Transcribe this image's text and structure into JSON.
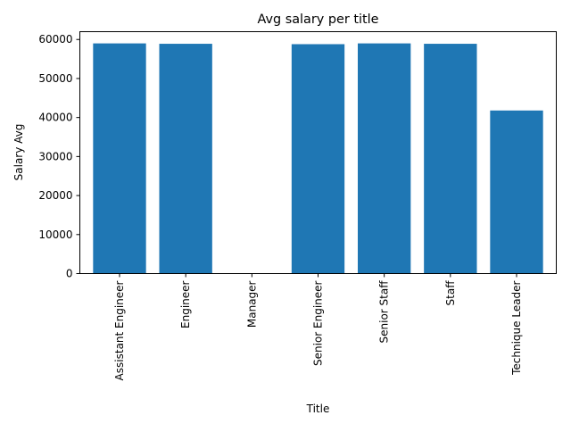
{
  "chart_data": {
    "type": "bar",
    "title": "Avg salary per title",
    "xlabel": "Title",
    "ylabel": "Salary Avg",
    "categories": [
      "Assistant Engineer",
      "Engineer",
      "Manager",
      "Senior Engineer",
      "Senior Staff",
      "Staff",
      "Technique Leader"
    ],
    "values": [
      59000,
      58900,
      0,
      58800,
      59000,
      58900,
      41800
    ],
    "ylim": [
      0,
      62000
    ],
    "yticks": [
      0,
      10000,
      20000,
      30000,
      40000,
      50000,
      60000
    ],
    "ytick_labels": [
      "0",
      "10000",
      "20000",
      "30000",
      "40000",
      "50000",
      "60000"
    ],
    "grid": false,
    "legend": "none",
    "colors": {
      "bar": "#1f77b4",
      "axis": "#000000",
      "background": "#ffffff"
    }
  }
}
